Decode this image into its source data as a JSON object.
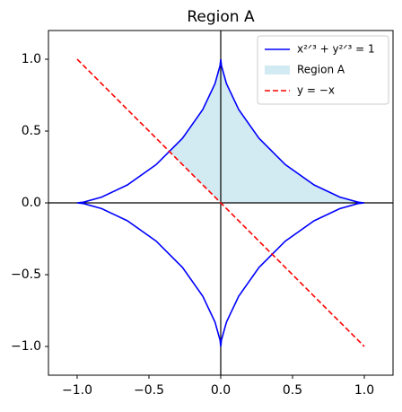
{
  "chart_data": {
    "type": "line",
    "title": "Region A",
    "xlim": [
      -1.2,
      1.2
    ],
    "ylim": [
      -1.2,
      1.2
    ],
    "xticks": [
      {
        "value": -1,
        "label": "−1.0"
      },
      {
        "value": -0.5,
        "label": "−0.5"
      },
      {
        "value": 0,
        "label": "0.0"
      },
      {
        "value": 0.5,
        "label": "0.5"
      },
      {
        "value": 1,
        "label": "1.0"
      }
    ],
    "yticks": [
      {
        "value": -1,
        "label": "−1.0"
      },
      {
        "value": -0.5,
        "label": "−0.5"
      },
      {
        "value": 0,
        "label": "0.0"
      },
      {
        "value": 0.5,
        "label": "0.5"
      },
      {
        "value": 1,
        "label": "1.0"
      }
    ],
    "legend": "upper right",
    "series": [
      {
        "name": "x²ᐟ³ + y²ᐟ³ = 1",
        "type": "line",
        "color": "#0000ff",
        "dash": false,
        "x": [
          1,
          0.955,
          0.83,
          0.65,
          0.45,
          0.266,
          0.125,
          0.04,
          0.005,
          0,
          -0.005,
          -0.04,
          -0.125,
          -0.266,
          -0.45,
          -0.65,
          -0.83,
          -0.955,
          -1,
          -0.955,
          -0.83,
          -0.65,
          -0.45,
          -0.266,
          -0.125,
          -0.04,
          -0.005,
          0,
          0.005,
          0.04,
          0.125,
          0.266,
          0.45,
          0.65,
          0.83,
          0.955,
          1
        ],
        "values": [
          0,
          0.005,
          0.04,
          0.125,
          0.266,
          0.45,
          0.65,
          0.83,
          0.955,
          1,
          0.955,
          0.83,
          0.65,
          0.45,
          0.266,
          0.125,
          0.04,
          0.005,
          0,
          -0.005,
          -0.04,
          -0.125,
          -0.266,
          -0.45,
          -0.65,
          -0.83,
          -0.955,
          -1,
          -0.955,
          -0.83,
          -0.65,
          -0.45,
          -0.266,
          -0.125,
          -0.04,
          -0.005,
          0
        ]
      },
      {
        "name": "Region A",
        "type": "area",
        "color": "#add8e6",
        "x": [
          0,
          -0.354,
          -0.266,
          -0.125,
          -0.04,
          -0.005,
          0,
          0.005,
          0.04,
          0.125,
          0.266,
          0.45,
          0.65,
          0.83,
          0.955,
          1
        ],
        "values": [
          0,
          0.354,
          0.45,
          0.65,
          0.83,
          0.955,
          1,
          0.955,
          0.83,
          0.65,
          0.45,
          0.266,
          0.125,
          0.04,
          0.005,
          0
        ]
      },
      {
        "name": "y = −x",
        "type": "line",
        "color": "#ff0000",
        "dash": true,
        "x": [
          -1,
          1
        ],
        "values": [
          1,
          -1
        ]
      }
    ]
  }
}
